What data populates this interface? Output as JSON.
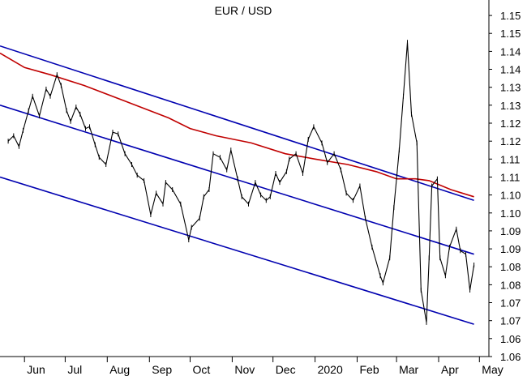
{
  "chart_data": {
    "type": "line",
    "title": "EUR / USD",
    "xlabel": "",
    "ylabel": "",
    "x_ticks": [
      "y",
      "Jun",
      "Jul",
      "Aug",
      "Sep",
      "Oct",
      "Nov",
      "Dec",
      "2020",
      "Feb",
      "Mar",
      "Apr",
      "May"
    ],
    "y_ticks": [
      "1.15",
      "1.15",
      "1.14",
      "1.14",
      "1.13",
      "1.13",
      "1.12",
      "1.12",
      "1.11",
      "1.11",
      "1.10",
      "1.10",
      "1.09",
      "1.09",
      "1.08",
      "1.08",
      "1.07",
      "1.07",
      "1.06",
      "1.06"
    ],
    "ylim": [
      1.0575,
      1.155
    ],
    "grid": false,
    "legend": "none",
    "colors": {
      "price": "#000000",
      "moving_average": "#c00000",
      "channel": "#0000b0",
      "axis": "#000000"
    },
    "series": [
      {
        "kind": "price",
        "color": "#000000",
        "points": [
          [
            "2019-05-20",
            1.1175
          ],
          [
            "2019-05-24",
            1.119
          ],
          [
            "2019-05-28",
            1.116
          ],
          [
            "2019-05-31",
            1.1205
          ],
          [
            "2019-06-04",
            1.126
          ],
          [
            "2019-06-07",
            1.13
          ],
          [
            "2019-06-12",
            1.1245
          ],
          [
            "2019-06-17",
            1.132
          ],
          [
            "2019-06-20",
            1.13
          ],
          [
            "2019-06-25",
            1.136
          ],
          [
            "2019-06-28",
            1.133
          ],
          [
            "2019-07-02",
            1.126
          ],
          [
            "2019-07-05",
            1.123
          ],
          [
            "2019-07-09",
            1.127
          ],
          [
            "2019-07-12",
            1.125
          ],
          [
            "2019-07-16",
            1.121
          ],
          [
            "2019-07-19",
            1.1215
          ],
          [
            "2019-07-23",
            1.1165
          ],
          [
            "2019-07-26",
            1.113
          ],
          [
            "2019-07-31",
            1.111
          ],
          [
            "2019-08-05",
            1.12
          ],
          [
            "2019-08-09",
            1.1195
          ],
          [
            "2019-08-14",
            1.114
          ],
          [
            "2019-08-19",
            1.111
          ],
          [
            "2019-08-23",
            1.108
          ],
          [
            "2019-08-28",
            1.1065
          ],
          [
            "2019-09-02",
            1.097
          ],
          [
            "2019-09-06",
            1.103
          ],
          [
            "2019-09-11",
            1.1
          ],
          [
            "2019-09-13",
            1.106
          ],
          [
            "2019-09-18",
            1.104
          ],
          [
            "2019-09-24",
            1.1
          ],
          [
            "2019-09-30",
            1.09
          ],
          [
            "2019-10-02",
            1.0935
          ],
          [
            "2019-10-08",
            1.096
          ],
          [
            "2019-10-11",
            1.102
          ],
          [
            "2019-10-15",
            1.104
          ],
          [
            "2019-10-18",
            1.114
          ],
          [
            "2019-10-23",
            1.113
          ],
          [
            "2019-10-28",
            1.1095
          ],
          [
            "2019-10-31",
            1.115
          ],
          [
            "2019-11-05",
            1.107
          ],
          [
            "2019-11-08",
            1.102
          ],
          [
            "2019-11-13",
            1.1
          ],
          [
            "2019-11-18",
            1.106
          ],
          [
            "2019-11-22",
            1.1025
          ],
          [
            "2019-11-26",
            1.101
          ],
          [
            "2019-11-29",
            1.102
          ],
          [
            "2019-12-03",
            1.1085
          ],
          [
            "2019-12-06",
            1.106
          ],
          [
            "2019-12-11",
            1.109
          ],
          [
            "2019-12-13",
            1.1125
          ],
          [
            "2019-12-18",
            1.114
          ],
          [
            "2019-12-23",
            1.1085
          ],
          [
            "2019-12-27",
            1.118
          ],
          [
            "2019-12-31",
            1.1215
          ],
          [
            "2020-01-06",
            1.117
          ],
          [
            "2020-01-10",
            1.1115
          ],
          [
            "2020-01-15",
            1.114
          ],
          [
            "2020-01-20",
            1.1095
          ],
          [
            "2020-01-24",
            1.103
          ],
          [
            "2020-01-29",
            1.101
          ],
          [
            "2020-02-03",
            1.105
          ],
          [
            "2020-02-07",
            1.096
          ],
          [
            "2020-02-12",
            1.088
          ],
          [
            "2020-02-18",
            1.08
          ],
          [
            "2020-02-20",
            1.078
          ],
          [
            "2020-02-25",
            1.085
          ],
          [
            "2020-02-28",
            1.099
          ],
          [
            "2020-03-03",
            1.115
          ],
          [
            "2020-03-06",
            1.13
          ],
          [
            "2020-03-09",
            1.145
          ],
          [
            "2020-03-12",
            1.125
          ],
          [
            "2020-03-16",
            1.117
          ],
          [
            "2020-03-19",
            1.076
          ],
          [
            "2020-03-23",
            1.067
          ],
          [
            "2020-03-25",
            1.085
          ],
          [
            "2020-03-27",
            1.105
          ],
          [
            "2020-03-31",
            1.107
          ],
          [
            "2020-04-02",
            1.085
          ],
          [
            "2020-04-06",
            1.08
          ],
          [
            "2020-04-09",
            1.088
          ],
          [
            "2020-04-14",
            1.093
          ],
          [
            "2020-04-17",
            1.087
          ],
          [
            "2020-04-21",
            1.086
          ],
          [
            "2020-04-24",
            1.076
          ],
          [
            "2020-04-27",
            1.083
          ]
        ]
      },
      {
        "kind": "moving-average",
        "color": "#c00000",
        "points": [
          [
            "2019-05-14",
            1.142
          ],
          [
            "2019-06-01",
            1.138
          ],
          [
            "2019-06-20",
            1.136
          ],
          [
            "2019-07-15",
            1.133
          ],
          [
            "2019-08-15",
            1.1285
          ],
          [
            "2019-09-15",
            1.124
          ],
          [
            "2019-10-01",
            1.121
          ],
          [
            "2019-10-20",
            1.119
          ],
          [
            "2019-11-15",
            1.117
          ],
          [
            "2019-12-10",
            1.114
          ],
          [
            "2020-01-01",
            1.1125
          ],
          [
            "2020-01-25",
            1.111
          ],
          [
            "2020-02-15",
            1.109
          ],
          [
            "2020-03-01",
            1.107
          ],
          [
            "2020-03-15",
            1.107
          ],
          [
            "2020-03-25",
            1.1065
          ],
          [
            "2020-04-10",
            1.104
          ],
          [
            "2020-04-27",
            1.102
          ]
        ]
      },
      {
        "kind": "channel-upper",
        "color": "#0000b0",
        "points": [
          [
            "2019-05-14",
            1.144
          ],
          [
            "2020-04-27",
            1.101
          ]
        ]
      },
      {
        "kind": "channel-middle",
        "color": "#0000b0",
        "points": [
          [
            "2019-05-14",
            1.1275
          ],
          [
            "2020-04-27",
            1.086
          ]
        ]
      },
      {
        "kind": "channel-lower",
        "color": "#0000b0",
        "points": [
          [
            "2019-05-14",
            1.1075
          ],
          [
            "2020-04-27",
            1.0665
          ]
        ]
      }
    ]
  }
}
